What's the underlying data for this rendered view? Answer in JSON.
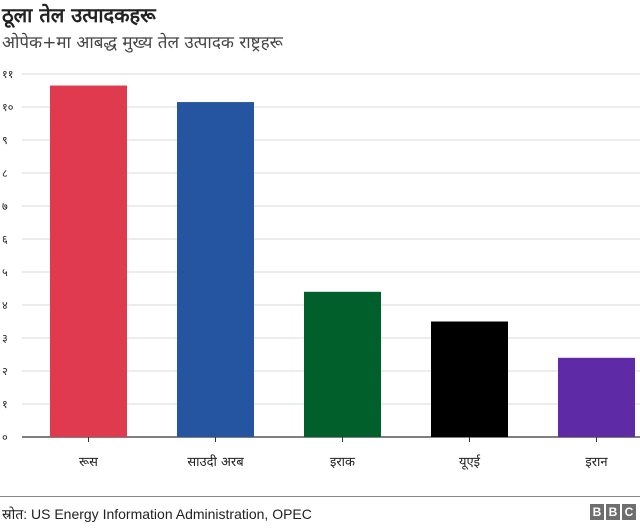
{
  "chart_data": {
    "type": "bar",
    "title": "ठूला तेल उत्पादकहरू",
    "subtitle": "ओपेक+मा आबद्ध मुख्य तेल उत्पादक राष्ट्रहरू",
    "categories": [
      "रूस",
      "साउदी अरब",
      "इराक",
      "यूएई",
      "इरान"
    ],
    "values": [
      10.65,
      10.15,
      4.4,
      3.5,
      2.4
    ],
    "colors": [
      "#e03a4e",
      "#2555a0",
      "#005f2b",
      "#000000",
      "#5f2aa6"
    ],
    "yticks": [
      0,
      1,
      2,
      3,
      4,
      5,
      6,
      7,
      8,
      9,
      10,
      11
    ],
    "ytick_labels": [
      "०",
      "१",
      "२",
      "३",
      "४",
      "५",
      "६",
      "७",
      "८",
      "९",
      "१०",
      "११"
    ],
    "ylim": [
      0,
      11
    ],
    "grid": true
  },
  "footer": {
    "source": "स्रोत: US Energy Information Administration, OPEC",
    "logo": [
      "B",
      "B",
      "C"
    ]
  }
}
